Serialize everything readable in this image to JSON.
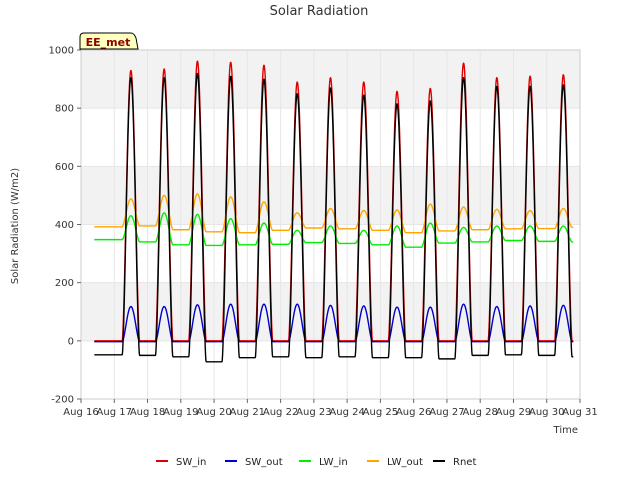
{
  "chart_data": {
    "type": "line",
    "title": "Solar Radiation",
    "badge": "EE_met",
    "xlabel": "Time",
    "ylabel": "Solar Radiation (W/m2)",
    "xlim": [
      16,
      31
    ],
    "ylim": [
      -200,
      1000
    ],
    "x_ticks": [
      {
        "value": 16,
        "label": "Aug 16"
      },
      {
        "value": 17,
        "label": "Aug 17"
      },
      {
        "value": 18,
        "label": "Aug 18"
      },
      {
        "value": 19,
        "label": "Aug 19"
      },
      {
        "value": 20,
        "label": "Aug 20"
      },
      {
        "value": 21,
        "label": "Aug 21"
      },
      {
        "value": 22,
        "label": "Aug 22"
      },
      {
        "value": 23,
        "label": "Aug 23"
      },
      {
        "value": 24,
        "label": "Aug 24"
      },
      {
        "value": 25,
        "label": "Aug 25"
      },
      {
        "value": 26,
        "label": "Aug 26"
      },
      {
        "value": 27,
        "label": "Aug 27"
      },
      {
        "value": 28,
        "label": "Aug 28"
      },
      {
        "value": 29,
        "label": "Aug 29"
      },
      {
        "value": 30,
        "label": "Aug 30"
      },
      {
        "value": 31,
        "label": "Aug 31"
      }
    ],
    "y_ticks": [
      {
        "value": -200,
        "label": "-200"
      },
      {
        "value": 0,
        "label": "0"
      },
      {
        "value": 200,
        "label": "200"
      },
      {
        "value": 400,
        "label": "400"
      },
      {
        "value": 600,
        "label": "600"
      },
      {
        "value": 800,
        "label": "800"
      },
      {
        "value": 1000,
        "label": "1000"
      }
    ],
    "grid": true,
    "legend_position": "bottom",
    "days": [
      17,
      18,
      19,
      20,
      21,
      22,
      23,
      24,
      25,
      26,
      27,
      28,
      29,
      30
    ],
    "data_start": 16.4,
    "data_end": 30.8,
    "series": [
      {
        "name": "SW_in",
        "color": "#dd0000",
        "night": 0,
        "day_peaks": [
          930,
          935,
          962,
          958,
          948,
          890,
          905,
          890,
          858,
          868,
          955,
          905,
          910,
          915
        ]
      },
      {
        "name": "SW_out",
        "color": "#0000cc",
        "night": -3,
        "day_peaks": [
          118,
          118,
          124,
          126,
          126,
          126,
          122,
          120,
          116,
          116,
          126,
          118,
          120,
          122
        ]
      },
      {
        "name": "LW_in",
        "color": "#00ee00",
        "night_levels": [
          348,
          340,
          330,
          328,
          330,
          332,
          338,
          335,
          330,
          322,
          336,
          340,
          345,
          342,
          340
        ],
        "day_peaks": [
          430,
          440,
          435,
          420,
          405,
          380,
          395,
          380,
          395,
          405,
          390,
          395,
          395,
          395
        ]
      },
      {
        "name": "LW_out",
        "color": "#ffa500",
        "night_levels": [
          392,
          395,
          382,
          375,
          372,
          380,
          388,
          385,
          380,
          372,
          378,
          382,
          385,
          386,
          390
        ],
        "day_peaks": [
          488,
          500,
          505,
          495,
          478,
          440,
          455,
          448,
          450,
          470,
          460,
          452,
          448,
          455
        ]
      },
      {
        "name": "Rnet",
        "color": "#000000",
        "night_levels": [
          -48,
          -50,
          -55,
          -72,
          -58,
          -55,
          -58,
          -55,
          -58,
          -58,
          -62,
          -50,
          -48,
          -50,
          -55
        ],
        "day_peaks": [
          905,
          905,
          920,
          910,
          900,
          850,
          870,
          845,
          815,
          825,
          905,
          875,
          875,
          880
        ]
      }
    ]
  }
}
